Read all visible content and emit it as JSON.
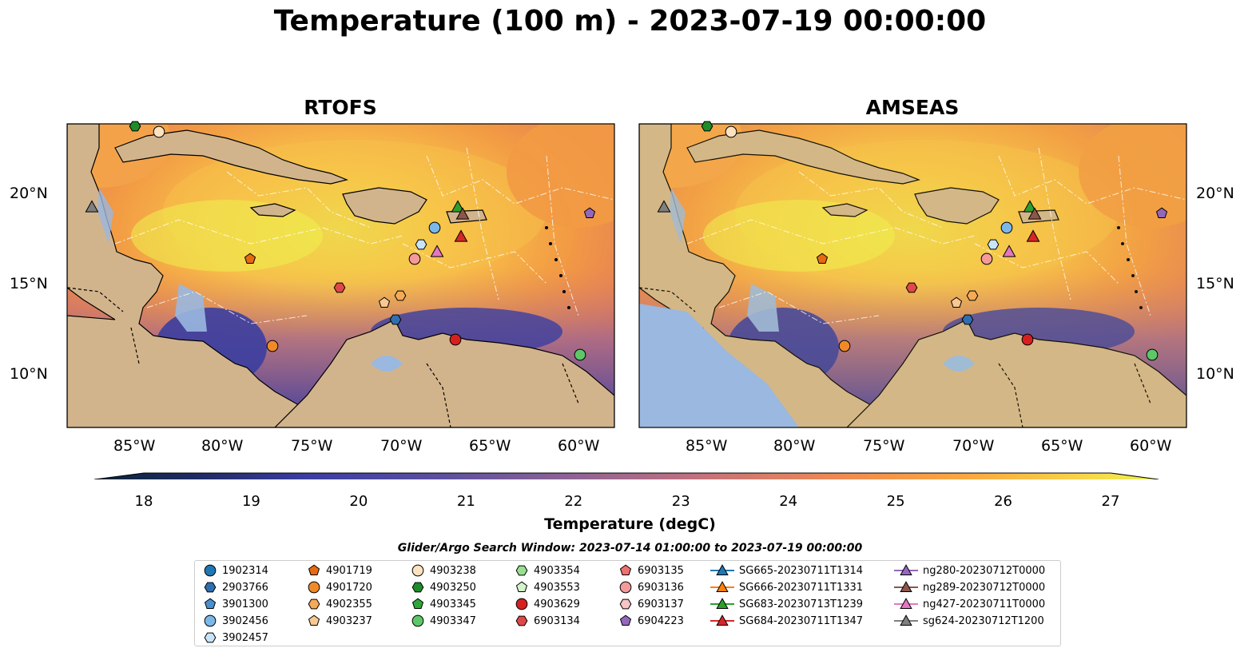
{
  "title": "Temperature (100 m) - 2023-07-19 00:00:00",
  "panels": [
    {
      "title": "RTOFS"
    },
    {
      "title": "AMSEAS"
    }
  ],
  "lat_ticks": [
    "20°N",
    "15°N",
    "10°N"
  ],
  "lon_ticks": [
    "85°W",
    "80°W",
    "75°W",
    "70°W",
    "65°W",
    "60°W"
  ],
  "colorbar": {
    "label": "Temperature (degC)",
    "ticks": [
      "18",
      "19",
      "20",
      "21",
      "22",
      "23",
      "24",
      "25",
      "26",
      "27"
    ],
    "min": 18,
    "max": 27
  },
  "colors": {
    "land": "#d2b48c",
    "ocean": "#9ab8e0",
    "cmap": [
      "#0b2538",
      "#1f2b66",
      "#3b3ea0",
      "#5a4fa0",
      "#7c5c98",
      "#a0678f",
      "#c87282",
      "#e6815e",
      "#f7a546",
      "#f9d54a",
      "#e8f550"
    ]
  },
  "search_window": "Glider/Argo Search Window: 2023-07-14 01:00:00 to 2023-07-19 00:00:00",
  "legend": [
    {
      "label": "1902314",
      "shape": "circle",
      "color": "#1f77b4"
    },
    {
      "label": "2903766",
      "shape": "hexagon",
      "color": "#2f6fb0"
    },
    {
      "label": "3901300",
      "shape": "pentagon",
      "color": "#4a8fd0"
    },
    {
      "label": "3902456",
      "shape": "circle",
      "color": "#7ab8e8"
    },
    {
      "label": "3902457",
      "shape": "hexagon",
      "color": "#c8e4f8"
    },
    {
      "label": "4901719",
      "shape": "pentagon",
      "color": "#e86a10"
    },
    {
      "label": "4901720",
      "shape": "circle",
      "color": "#f08a28"
    },
    {
      "label": "4902355",
      "shape": "hexagon",
      "color": "#f5aa58"
    },
    {
      "label": "4903237",
      "shape": "pentagon",
      "color": "#f8c890"
    },
    {
      "label": "4903238",
      "shape": "circle",
      "color": "#fde2c0"
    },
    {
      "label": "4903250",
      "shape": "hexagon",
      "color": "#1e8c2a"
    },
    {
      "label": "4903345",
      "shape": "pentagon",
      "color": "#2ea838"
    },
    {
      "label": "4903347",
      "shape": "circle",
      "color": "#5cc868"
    },
    {
      "label": "4903354",
      "shape": "hexagon",
      "color": "#98e090"
    },
    {
      "label": "4903553",
      "shape": "pentagon",
      "color": "#d4f4cc"
    },
    {
      "label": "4903629",
      "shape": "circle",
      "color": "#d62020"
    },
    {
      "label": "6903134",
      "shape": "hexagon",
      "color": "#e04848"
    },
    {
      "label": "6903135",
      "shape": "pentagon",
      "color": "#f07070"
    },
    {
      "label": "6903136",
      "shape": "circle",
      "color": "#f49a9a"
    },
    {
      "label": "6903137",
      "shape": "hexagon",
      "color": "#f8c4c4"
    },
    {
      "label": "6904223",
      "shape": "pentagon",
      "color": "#9467bd"
    },
    {
      "label": "SG665-20230711T1314",
      "shape": "triangle",
      "color": "#1f77b4"
    },
    {
      "label": "SG666-20230711T1331",
      "shape": "triangle",
      "color": "#ff7f0e"
    },
    {
      "label": "SG683-20230713T1239",
      "shape": "triangle",
      "color": "#2ca02c"
    },
    {
      "label": "SG684-20230711T1347",
      "shape": "triangle",
      "color": "#d62728"
    },
    {
      "label": "ng280-20230712T0000",
      "shape": "triangle",
      "color": "#9467bd"
    },
    {
      "label": "ng289-20230712T0000",
      "shape": "triangle",
      "color": "#8c564b"
    },
    {
      "label": "ng427-20230711T0000",
      "shape": "triangle",
      "color": "#e377c2"
    },
    {
      "label": "sg624-20230712T1200",
      "shape": "triangle",
      "color": "#7f7f7f"
    }
  ]
}
